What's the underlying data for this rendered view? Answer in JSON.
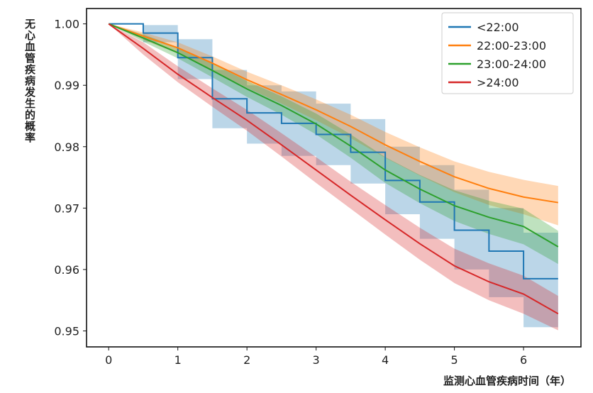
{
  "chart_data": {
    "type": "line",
    "xlabel": "监测心血管疾病时间（年）",
    "ylabel": "无心血管疾病发生的概率",
    "xlim": [
      -0.32,
      6.83
    ],
    "ylim": [
      0.9474,
      1.0025
    ],
    "xticks": [
      0,
      1,
      2,
      3,
      4,
      5,
      6
    ],
    "yticks": [
      1.0,
      0.99,
      0.98,
      0.97,
      0.96,
      0.95
    ],
    "ytick_labels": [
      "1.00",
      "0.99",
      "0.98",
      "0.97",
      "0.96",
      "0.95"
    ],
    "grid": false,
    "legend_position": "top-right",
    "x": [
      0,
      0.5,
      1,
      1.5,
      2,
      2.5,
      3,
      3.5,
      4,
      4.5,
      5,
      5.5,
      6,
      6.5
    ],
    "series": [
      {
        "name": "<22:00",
        "color": "#1f77b4",
        "step": true,
        "values": [
          1.0,
          0.9985,
          0.9945,
          0.9878,
          0.9855,
          0.9838,
          0.982,
          0.9791,
          0.9745,
          0.971,
          0.9664,
          0.963,
          0.9585,
          0.9585
        ],
        "lower": [
          1.0,
          0.997,
          0.991,
          0.983,
          0.9805,
          0.9785,
          0.977,
          0.974,
          0.969,
          0.965,
          0.96,
          0.9555,
          0.9506,
          0.9506
        ],
        "upper": [
          1.0,
          0.9998,
          0.9975,
          0.9925,
          0.99,
          0.989,
          0.987,
          0.9845,
          0.98,
          0.977,
          0.973,
          0.97,
          0.966,
          0.966
        ]
      },
      {
        "name": "22:00-23:00",
        "color": "#ff7f0e",
        "values": [
          1.0,
          0.998,
          0.9961,
          0.9936,
          0.9909,
          0.9885,
          0.986,
          0.9833,
          0.9803,
          0.9776,
          0.9751,
          0.9732,
          0.9718,
          0.9709
        ],
        "lower": [
          1.0,
          0.9974,
          0.9952,
          0.9925,
          0.9896,
          0.987,
          0.9843,
          0.9814,
          0.9782,
          0.9753,
          0.9726,
          0.9705,
          0.969,
          0.9672
        ],
        "upper": [
          1.0,
          0.9986,
          0.997,
          0.9947,
          0.9922,
          0.99,
          0.9877,
          0.9852,
          0.9824,
          0.9799,
          0.9776,
          0.9759,
          0.9746,
          0.9736
        ]
      },
      {
        "name": "23:00-24:00",
        "color": "#2ca02c",
        "values": [
          1.0,
          0.9977,
          0.9953,
          0.9924,
          0.9894,
          0.9867,
          0.9837,
          0.9801,
          0.9762,
          0.9731,
          0.9704,
          0.9685,
          0.967,
          0.9637
        ],
        "lower": [
          1.0,
          0.9971,
          0.9944,
          0.9913,
          0.9881,
          0.9852,
          0.982,
          0.9782,
          0.9741,
          0.9708,
          0.9679,
          0.9658,
          0.9641,
          0.9609
        ],
        "upper": [
          1.0,
          0.9983,
          0.9962,
          0.9935,
          0.9907,
          0.9882,
          0.9854,
          0.982,
          0.9783,
          0.9754,
          0.9729,
          0.9712,
          0.9699,
          0.9663
        ]
      },
      {
        "name": ">24:00",
        "color": "#d62728",
        "values": [
          1.0,
          0.996,
          0.9918,
          0.988,
          0.9843,
          0.9803,
          0.9762,
          0.9721,
          0.9681,
          0.9642,
          0.9606,
          0.958,
          0.956,
          0.9528
        ],
        "lower": [
          1.0,
          0.995,
          0.9905,
          0.9865,
          0.9826,
          0.9784,
          0.9741,
          0.9699,
          0.9657,
          0.9616,
          0.9578,
          0.955,
          0.9528,
          0.9501
        ],
        "upper": [
          1.0,
          0.997,
          0.9931,
          0.9895,
          0.986,
          0.9822,
          0.9783,
          0.9743,
          0.9705,
          0.9668,
          0.9634,
          0.961,
          0.959,
          0.9557
        ]
      }
    ]
  }
}
